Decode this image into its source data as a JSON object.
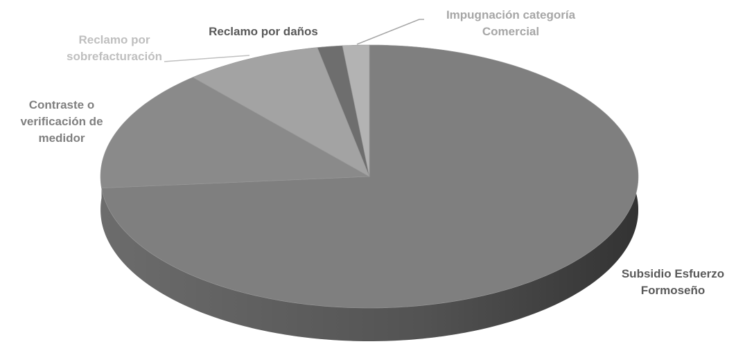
{
  "chart_data": {
    "type": "pie3d",
    "categories": [
      "Subsidio Esfuerzo Formoseño",
      "Contraste o verificación de medidor",
      "Reclamo por sobrefacturación",
      "Reclamo por daños",
      "Impugnación categoría Comercial"
    ],
    "values": [
      73.6,
      15,
      8.3,
      1.5,
      1.6
    ],
    "colors": [
      "#7f7f7f",
      "#8a8a8a",
      "#a3a3a3",
      "#6e6e6e",
      "#b3b3b3"
    ],
    "label_colors": [
      "#595959",
      "#7f7f7f",
      "#bfbfbf",
      "#595959",
      "#a6a6a6"
    ]
  }
}
